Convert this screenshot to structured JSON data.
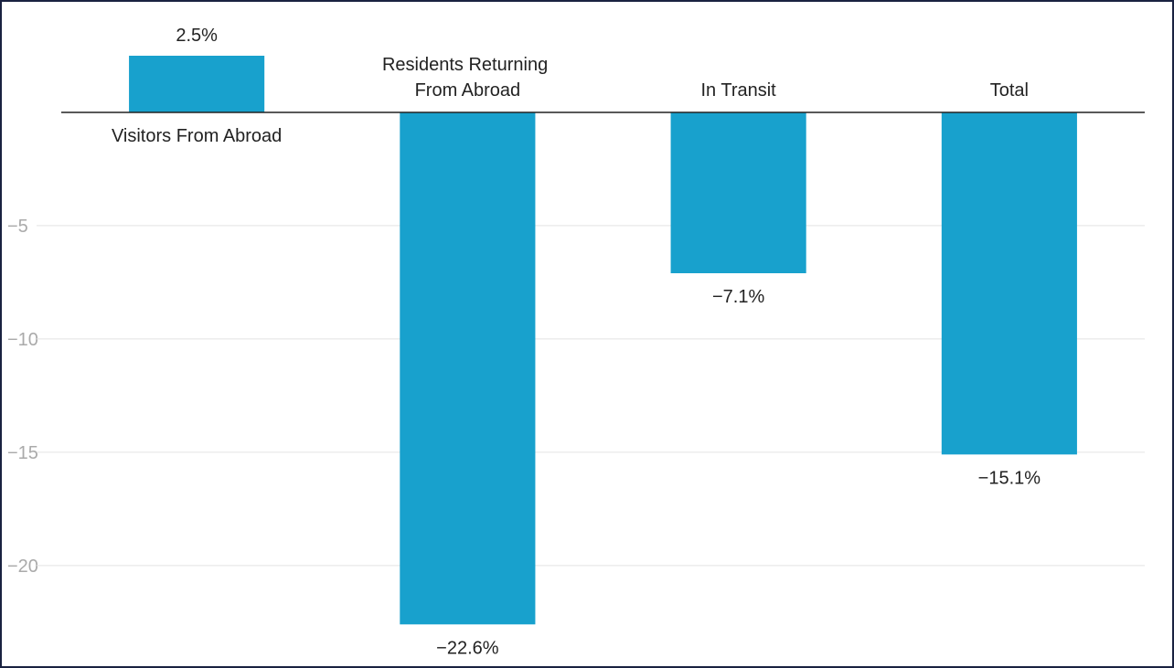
{
  "chart_data": {
    "type": "bar",
    "categories": [
      "Visitors From Abroad",
      "Residents Returning From Abroad",
      "In Transit",
      "Total"
    ],
    "values": [
      2.5,
      -22.6,
      -7.1,
      -15.1
    ],
    "value_labels": [
      "2.5%",
      "−22.6%",
      "−7.1%",
      "−15.1%"
    ],
    "color": "#18a1cd",
    "ylim": [
      -24,
      4.5
    ],
    "yticks": [
      {
        "value": -5,
        "label": "−5"
      },
      {
        "value": -10,
        "label": "−10"
      },
      {
        "value": -15,
        "label": "−15"
      },
      {
        "value": -20,
        "label": "−20"
      }
    ],
    "grid": true
  }
}
